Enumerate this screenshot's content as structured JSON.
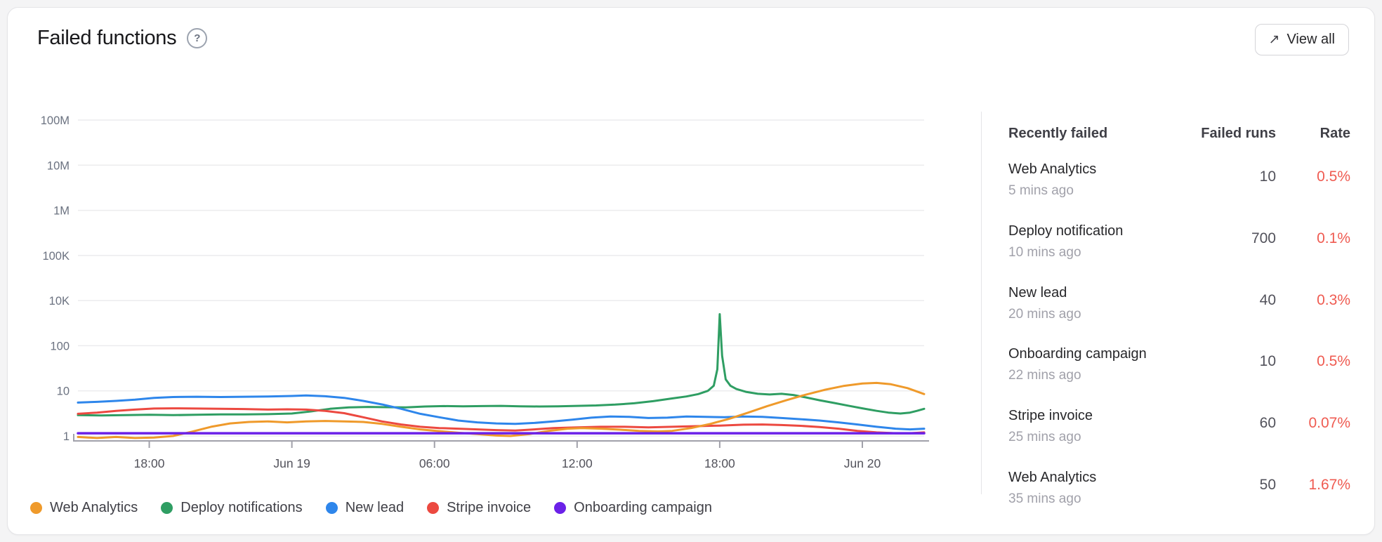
{
  "header": {
    "title": "Failed functions",
    "help_icon": "?",
    "view_all_label": "View all",
    "view_all_icon": "↗"
  },
  "chart_data": {
    "type": "line",
    "y_scale": "log",
    "grid": true,
    "y_ticks": [
      "100M",
      "10M",
      "1M",
      "100K",
      "10K",
      "100",
      "10",
      "1"
    ],
    "x_ticks": [
      {
        "t": 3,
        "label": "18:00"
      },
      {
        "t": 9,
        "label": "Jun 19"
      },
      {
        "t": 15,
        "label": "06:00"
      },
      {
        "t": 21,
        "label": "12:00"
      },
      {
        "t": 27,
        "label": "18:00"
      },
      {
        "t": 33,
        "label": "Jun 20"
      }
    ],
    "x_range_hours": [
      0,
      35.6
    ],
    "series": [
      {
        "name": "Deploy notifications",
        "color": "#2f9e63",
        "points": [
          [
            0,
            2.9
          ],
          [
            1,
            2.85
          ],
          [
            2,
            2.9
          ],
          [
            3,
            2.95
          ],
          [
            4,
            2.9
          ],
          [
            5,
            2.95
          ],
          [
            6,
            3.0
          ],
          [
            7,
            3.0
          ],
          [
            8,
            3.05
          ],
          [
            9,
            3.15
          ],
          [
            9.8,
            3.5
          ],
          [
            10.6,
            4.0
          ],
          [
            11.4,
            4.3
          ],
          [
            12.2,
            4.4
          ],
          [
            13,
            4.35
          ],
          [
            13.8,
            4.3
          ],
          [
            14.6,
            4.5
          ],
          [
            15.4,
            4.6
          ],
          [
            16.2,
            4.55
          ],
          [
            17,
            4.6
          ],
          [
            17.8,
            4.65
          ],
          [
            18.6,
            4.55
          ],
          [
            19.4,
            4.5
          ],
          [
            20.2,
            4.55
          ],
          [
            21,
            4.65
          ],
          [
            21.8,
            4.75
          ],
          [
            22.6,
            4.95
          ],
          [
            23.4,
            5.3
          ],
          [
            24.2,
            5.9
          ],
          [
            25,
            6.8
          ],
          [
            25.6,
            7.5
          ],
          [
            26.1,
            8.5
          ],
          [
            26.5,
            10
          ],
          [
            26.75,
            13
          ],
          [
            26.9,
            30
          ],
          [
            27.0,
            2500
          ],
          [
            27.1,
            60
          ],
          [
            27.25,
            18
          ],
          [
            27.45,
            13
          ],
          [
            27.7,
            11
          ],
          [
            28.1,
            9.5
          ],
          [
            28.6,
            8.6
          ],
          [
            29.1,
            8.3
          ],
          [
            29.6,
            8.6
          ],
          [
            30.1,
            8.1
          ],
          [
            30.6,
            7.2
          ],
          [
            31.2,
            6.2
          ],
          [
            31.8,
            5.4
          ],
          [
            32.4,
            4.7
          ],
          [
            33,
            4.1
          ],
          [
            33.6,
            3.6
          ],
          [
            34.1,
            3.3
          ],
          [
            34.6,
            3.15
          ],
          [
            35,
            3.3
          ],
          [
            35.3,
            3.6
          ],
          [
            35.6,
            4.0
          ]
        ]
      },
      {
        "name": "Stripe invoice",
        "color": "#ec4940",
        "points": [
          [
            0,
            3.1
          ],
          [
            0.8,
            3.3
          ],
          [
            1.6,
            3.6
          ],
          [
            2.4,
            3.85
          ],
          [
            3.2,
            4.05
          ],
          [
            4,
            4.1
          ],
          [
            5,
            4.05
          ],
          [
            6,
            4.0
          ],
          [
            7,
            3.95
          ],
          [
            8,
            3.85
          ],
          [
            8.8,
            3.9
          ],
          [
            9.6,
            3.85
          ],
          [
            10.4,
            3.6
          ],
          [
            11.2,
            3.2
          ],
          [
            12,
            2.6
          ],
          [
            12.8,
            2.1
          ],
          [
            13.6,
            1.8
          ],
          [
            14.4,
            1.6
          ],
          [
            15.2,
            1.5
          ],
          [
            16,
            1.45
          ],
          [
            16.8,
            1.4
          ],
          [
            17.6,
            1.35
          ],
          [
            18.4,
            1.32
          ],
          [
            19.2,
            1.4
          ],
          [
            20,
            1.5
          ],
          [
            21,
            1.55
          ],
          [
            22,
            1.6
          ],
          [
            23,
            1.6
          ],
          [
            24,
            1.55
          ],
          [
            25,
            1.6
          ],
          [
            26,
            1.65
          ],
          [
            27,
            1.7
          ],
          [
            28,
            1.78
          ],
          [
            28.8,
            1.8
          ],
          [
            29.6,
            1.75
          ],
          [
            30.4,
            1.68
          ],
          [
            31.2,
            1.58
          ],
          [
            32,
            1.45
          ],
          [
            32.8,
            1.3
          ],
          [
            33.6,
            1.2
          ],
          [
            34.4,
            1.15
          ],
          [
            35,
            1.15
          ],
          [
            35.6,
            1.2
          ]
        ]
      },
      {
        "name": "New lead",
        "color": "#2e86eb",
        "points": [
          [
            0,
            5.5
          ],
          [
            0.8,
            5.7
          ],
          [
            1.6,
            6.0
          ],
          [
            2.4,
            6.4
          ],
          [
            3.2,
            7.0
          ],
          [
            4,
            7.3
          ],
          [
            5,
            7.4
          ],
          [
            6,
            7.3
          ],
          [
            7,
            7.4
          ],
          [
            8,
            7.5
          ],
          [
            9,
            7.7
          ],
          [
            9.6,
            7.9
          ],
          [
            10.4,
            7.6
          ],
          [
            11.2,
            7.0
          ],
          [
            12,
            6.0
          ],
          [
            12.8,
            5.0
          ],
          [
            13.6,
            4.0
          ],
          [
            14.4,
            3.1
          ],
          [
            15.2,
            2.6
          ],
          [
            16,
            2.2
          ],
          [
            16.8,
            2.0
          ],
          [
            17.6,
            1.9
          ],
          [
            18.4,
            1.85
          ],
          [
            19.2,
            1.95
          ],
          [
            20,
            2.1
          ],
          [
            20.8,
            2.3
          ],
          [
            21.6,
            2.55
          ],
          [
            22.4,
            2.7
          ],
          [
            23.2,
            2.65
          ],
          [
            24,
            2.5
          ],
          [
            24.8,
            2.55
          ],
          [
            25.6,
            2.7
          ],
          [
            26.4,
            2.65
          ],
          [
            27.2,
            2.6
          ],
          [
            28,
            2.7
          ],
          [
            28.8,
            2.65
          ],
          [
            29.6,
            2.5
          ],
          [
            30.4,
            2.35
          ],
          [
            31.2,
            2.2
          ],
          [
            32,
            2.0
          ],
          [
            32.8,
            1.8
          ],
          [
            33.6,
            1.6
          ],
          [
            34.4,
            1.45
          ],
          [
            35,
            1.4
          ],
          [
            35.6,
            1.45
          ]
        ]
      },
      {
        "name": "Web Analytics",
        "color": "#ef9a2b",
        "points": [
          [
            0,
            0.95
          ],
          [
            0.8,
            0.9
          ],
          [
            1.6,
            0.95
          ],
          [
            2.4,
            0.9
          ],
          [
            3.2,
            0.92
          ],
          [
            4,
            1.0
          ],
          [
            4.8,
            1.25
          ],
          [
            5.6,
            1.6
          ],
          [
            6.4,
            1.9
          ],
          [
            7.2,
            2.05
          ],
          [
            8,
            2.1
          ],
          [
            8.8,
            2.0
          ],
          [
            9.6,
            2.1
          ],
          [
            10.4,
            2.15
          ],
          [
            11.2,
            2.1
          ],
          [
            12,
            2.05
          ],
          [
            12.8,
            1.85
          ],
          [
            13.6,
            1.6
          ],
          [
            14.4,
            1.4
          ],
          [
            15.2,
            1.28
          ],
          [
            16,
            1.18
          ],
          [
            16.8,
            1.1
          ],
          [
            17.6,
            1.02
          ],
          [
            18.2,
            1.0
          ],
          [
            19,
            1.1
          ],
          [
            19.8,
            1.3
          ],
          [
            20.6,
            1.45
          ],
          [
            21.2,
            1.5
          ],
          [
            22,
            1.45
          ],
          [
            22.8,
            1.38
          ],
          [
            23.6,
            1.3
          ],
          [
            24.4,
            1.26
          ],
          [
            25,
            1.3
          ],
          [
            25.8,
            1.5
          ],
          [
            26.6,
            1.85
          ],
          [
            27.4,
            2.4
          ],
          [
            28.2,
            3.3
          ],
          [
            29,
            4.6
          ],
          [
            29.8,
            6.2
          ],
          [
            30.6,
            8.2
          ],
          [
            31.4,
            10.5
          ],
          [
            32.2,
            12.8
          ],
          [
            33,
            14.5
          ],
          [
            33.6,
            15
          ],
          [
            34.2,
            14
          ],
          [
            34.9,
            11.5
          ],
          [
            35.6,
            8.5
          ]
        ]
      },
      {
        "name": "Onboarding campaign",
        "color": "#6b21e8",
        "points": [
          [
            0,
            1.15
          ],
          [
            35.6,
            1.15
          ]
        ]
      }
    ]
  },
  "legend": {
    "items": [
      {
        "label": "Web Analytics",
        "color": "#ef9a2b"
      },
      {
        "label": "Deploy notifications",
        "color": "#2f9e63"
      },
      {
        "label": "New lead",
        "color": "#2e86eb"
      },
      {
        "label": "Stripe invoice",
        "color": "#ec4940"
      },
      {
        "label": "Onboarding campaign",
        "color": "#6b21e8"
      }
    ]
  },
  "table": {
    "headers": {
      "name": "Recently failed",
      "runs": "Failed runs",
      "rate": "Rate"
    },
    "rows": [
      {
        "name": "Web Analytics",
        "time": "5 mins ago",
        "runs": "10",
        "rate": "0.5%"
      },
      {
        "name": "Deploy notification",
        "time": "10 mins ago",
        "runs": "700",
        "rate": "0.1%"
      },
      {
        "name": "New lead",
        "time": "20 mins ago",
        "runs": "40",
        "rate": "0.3%"
      },
      {
        "name": "Onboarding campaign",
        "time": "22 mins ago",
        "runs": "10",
        "rate": "0.5%"
      },
      {
        "name": "Stripe invoice",
        "time": "25 mins ago",
        "runs": "60",
        "rate": "0.07%"
      },
      {
        "name": "Web Analytics",
        "time": "35 mins ago",
        "runs": "50",
        "rate": "1.67%"
      }
    ]
  },
  "colors": {
    "rate_red": "#ef5b51",
    "grid_line": "#ececee",
    "axis_line": "#a1a1aa",
    "tick_label": "#6b7280",
    "card_border": "#e4e4e7"
  }
}
